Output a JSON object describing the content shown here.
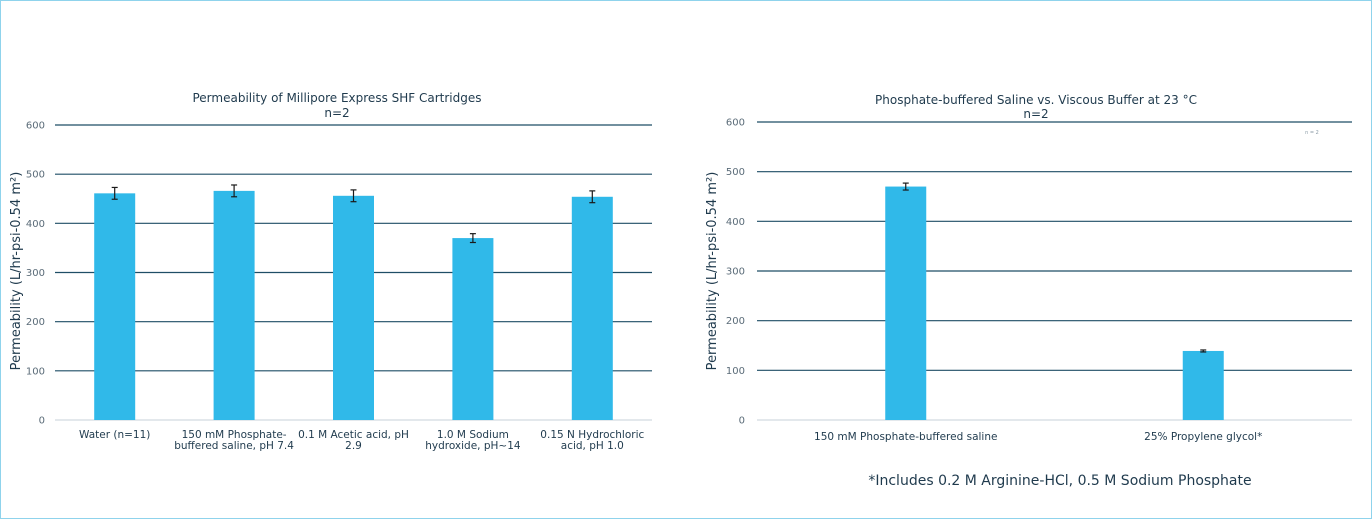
{
  "colors": {
    "bar": "#30b9e9",
    "grid": "#1f4e66",
    "error": "#1a1a1a"
  },
  "chart_data": [
    {
      "type": "bar",
      "title": "Permeability of Millipore Express SHF Cartridges",
      "subtitle": "n=2",
      "ylabel": "Permeability (L/hr-psi-0.54 m²)",
      "ylim": [
        0,
        600
      ],
      "yticks": [
        "0",
        "100",
        "200",
        "300",
        "400",
        "500",
        "600"
      ],
      "grid": true,
      "categories": [
        [
          "Water (n=11)"
        ],
        [
          "150 mM Phosphate-",
          "buffered saline, pH 7.4"
        ],
        [
          "0.1 M Acetic acid, pH",
          "2.9"
        ],
        [
          "1.0 M Sodium",
          "hydroxide, pH~14"
        ],
        [
          "0.15 N Hydrochloric",
          "acid, pH 1.0"
        ]
      ],
      "values": [
        461,
        466,
        456,
        370,
        454
      ],
      "errors": [
        12,
        12,
        12,
        9,
        12
      ]
    },
    {
      "type": "bar",
      "title": "Phosphate-buffered Saline vs. Viscous Buffer at 23 °C",
      "subtitle": "n=2",
      "corner_note": "n = 2",
      "ylabel": "Permeability (L/hr-psi-0.54 m²)",
      "ylim": [
        0,
        600
      ],
      "yticks": [
        "0",
        "100",
        "200",
        "300",
        "400",
        "500",
        "600"
      ],
      "grid": true,
      "categories": [
        [
          "150 mM Phosphate-buffered saline"
        ],
        [
          "25% Propylene glycol*"
        ]
      ],
      "values": [
        470,
        139
      ],
      "errors": [
        7,
        2
      ],
      "footnote": "*Includes 0.2 M Arginine-HCl, 0.5 M Sodium Phosphate"
    }
  ]
}
